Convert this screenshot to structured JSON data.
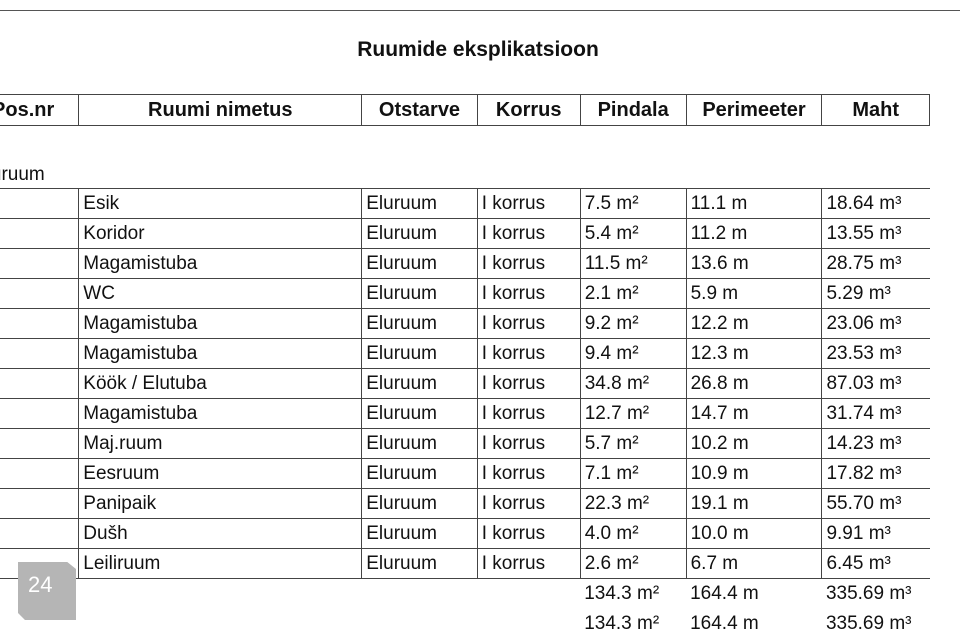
{
  "title": "Ruumide eksplikatsioon",
  "columns": [
    "Pos.nr",
    "Ruumi nimetus",
    "Otstarve",
    "Korrus",
    "Pindala",
    "Perimeeter",
    "Maht"
  ],
  "group_label": "Eluruum",
  "rows": [
    {
      "name": "Esik",
      "purpose": "Eluruum",
      "floor": "I korrus",
      "area": "7.5 m²",
      "perimeter": "11.1 m",
      "volume": "18.64 m³"
    },
    {
      "name": "Koridor",
      "purpose": "Eluruum",
      "floor": "I korrus",
      "area": "5.4 m²",
      "perimeter": "11.2 m",
      "volume": "13.55 m³"
    },
    {
      "name": "Magamistuba",
      "purpose": "Eluruum",
      "floor": "I korrus",
      "area": "11.5 m²",
      "perimeter": "13.6 m",
      "volume": "28.75 m³"
    },
    {
      "name": "WC",
      "purpose": "Eluruum",
      "floor": "I korrus",
      "area": "2.1 m²",
      "perimeter": "5.9 m",
      "volume": "5.29 m³"
    },
    {
      "name": "Magamistuba",
      "purpose": "Eluruum",
      "floor": "I korrus",
      "area": "9.2 m²",
      "perimeter": "12.2 m",
      "volume": "23.06 m³"
    },
    {
      "name": "Magamistuba",
      "purpose": "Eluruum",
      "floor": "I korrus",
      "area": "9.4 m²",
      "perimeter": "12.3 m",
      "volume": "23.53 m³"
    },
    {
      "name": "Köök / Elutuba",
      "purpose": "Eluruum",
      "floor": "I korrus",
      "area": "34.8 m²",
      "perimeter": "26.8 m",
      "volume": "87.03 m³"
    },
    {
      "name": "Magamistuba",
      "purpose": "Eluruum",
      "floor": "I korrus",
      "area": "12.7 m²",
      "perimeter": "14.7 m",
      "volume": "31.74 m³"
    },
    {
      "name": "Maj.ruum",
      "purpose": "Eluruum",
      "floor": "I korrus",
      "area": "5.7 m²",
      "perimeter": "10.2 m",
      "volume": "14.23 m³"
    },
    {
      "name": "Eesruum",
      "purpose": "Eluruum",
      "floor": "I korrus",
      "area": "7.1 m²",
      "perimeter": "10.9 m",
      "volume": "17.82 m³"
    },
    {
      "name": "Panipaik",
      "purpose": "Eluruum",
      "floor": "I korrus",
      "area": "22.3 m²",
      "perimeter": "19.1 m",
      "volume": "55.70 m³"
    },
    {
      "name": "Dušh",
      "purpose": "Eluruum",
      "floor": "I korrus",
      "area": "4.0 m²",
      "perimeter": "10.0 m",
      "volume": "9.91 m³"
    },
    {
      "name": "Leiliruum",
      "purpose": "Eluruum",
      "floor": "I korrus",
      "area": "2.6 m²",
      "perimeter": "6.7 m",
      "volume": "6.45 m³"
    }
  ],
  "totals": [
    {
      "area": "134.3 m²",
      "perimeter": "164.4 m",
      "volume": "335.69 m³"
    },
    {
      "area": "134.3 m²",
      "perimeter": "164.4 m",
      "volume": "335.69 m³"
    }
  ],
  "page_badge": "24"
}
